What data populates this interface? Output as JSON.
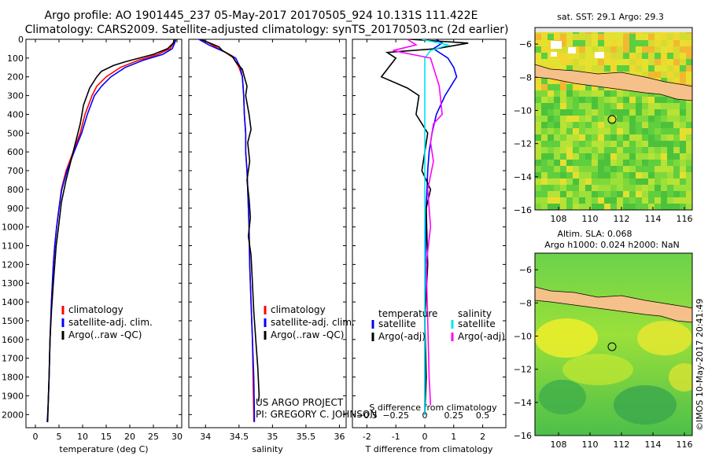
{
  "header": {
    "title_line1": "Argo profile: AO 1901445_237 05-May-2017 20170505_924 10.131S 111.422E",
    "title_line2": "Climatology: CARS2009. Satellite-adjusted climatology: synTS_20170503.nc (2d earlier)"
  },
  "credit": {
    "line1": "US ARGO PROJECT",
    "line2": "PI: GREGORY C. JOHNSON"
  },
  "imos": "©IMOS 10-May-2017 20:41:49",
  "colors": {
    "climatology": "#ff0000",
    "satellite": "#0000ff",
    "argo": "#000000",
    "satellite_s": "#00e5ee",
    "argo_s": "#ff00ff"
  },
  "legend_ts": [
    "climatology",
    "satellite-adj. clim.",
    "Argo(..raw -QC)"
  ],
  "legend_diff": {
    "temperature_title": "temperature",
    "salinity_title": "salinity",
    "t_sat": "satellite",
    "t_argo": "Argo(-adj)",
    "s_sat": "satellite",
    "s_argo": "Argo(-adj)"
  },
  "map_sst": {
    "title": "sat. SST: 29.1  Argo: 29.3"
  },
  "map_sla": {
    "title1": "Altim. SLA: 0.068",
    "title2": "Argo h1000: 0.024 h2000: NaN"
  },
  "chart_data": [
    {
      "type": "line",
      "panel": "temperature",
      "xlabel": "temperature (deg C)",
      "ylabel": "",
      "xlim": [
        -2,
        31
      ],
      "ylim": [
        2070,
        0
      ],
      "xticks": [
        0,
        5,
        10,
        15,
        20,
        25,
        30
      ],
      "yticks": [
        0,
        100,
        200,
        300,
        400,
        500,
        600,
        700,
        800,
        900,
        1000,
        1100,
        1200,
        1300,
        1400,
        1500,
        1600,
        1700,
        1800,
        1900,
        2000
      ],
      "series": [
        {
          "name": "climatology",
          "color": "#ff0000",
          "x": [
            29.5,
            29.3,
            28.5,
            26,
            22,
            18,
            15,
            13,
            12,
            10.5,
            9.5,
            8,
            6.5,
            5.5,
            5,
            4.5,
            4.1,
            3.8,
            3.4,
            3.1,
            2.9,
            2.7,
            2.6,
            2.5
          ],
          "y": [
            0,
            20,
            50,
            80,
            110,
            150,
            200,
            250,
            300,
            400,
            500,
            600,
            700,
            800,
            900,
            1000,
            1100,
            1200,
            1400,
            1600,
            1800,
            1950,
            2000,
            2040
          ]
        },
        {
          "name": "satellite-adj. clim.",
          "color": "#0000ff",
          "x": [
            29.8,
            29.5,
            29,
            27,
            23,
            19,
            16,
            14,
            12.5,
            11,
            9.8,
            8.2,
            6.7,
            5.6,
            5,
            4.5,
            4.1,
            3.8,
            3.4,
            3.1,
            2.9,
            2.7,
            2.6,
            2.5
          ],
          "y": [
            0,
            20,
            50,
            80,
            110,
            150,
            200,
            250,
            300,
            400,
            500,
            600,
            700,
            800,
            900,
            1000,
            1100,
            1200,
            1400,
            1600,
            1800,
            1950,
            2000,
            2040
          ]
        },
        {
          "name": "Argo(..raw -QC)",
          "color": "#000000",
          "x": [
            29.4,
            29.2,
            28,
            25,
            22,
            19,
            16.5,
            14,
            13,
            11.5,
            10.2,
            9.5,
            8,
            6.5,
            5.5,
            4.9,
            4.4,
            4.1,
            3.8,
            3.4,
            3.1,
            2.9,
            2.7,
            2.6
          ],
          "y": [
            0,
            20,
            50,
            80,
            100,
            120,
            140,
            170,
            200,
            260,
            350,
            450,
            600,
            750,
            870,
            1000,
            1100,
            1200,
            1300,
            1450,
            1600,
            1800,
            1950,
            2040
          ]
        }
      ]
    },
    {
      "type": "line",
      "panel": "salinity",
      "xlabel": "salinity",
      "ylabel": "",
      "xlim": [
        33.75,
        36.1
      ],
      "ylim": [
        2070,
        0
      ],
      "xticks": [
        34,
        34.5,
        35,
        35.5,
        36
      ],
      "series": [
        {
          "name": "climatology",
          "color": "#ff0000",
          "x": [
            33.95,
            34.1,
            34.3,
            34.42,
            34.5,
            34.55,
            34.57,
            34.58,
            34.6,
            34.6,
            34.62,
            34.63,
            34.65,
            34.66,
            34.68,
            34.7,
            34.71,
            34.72,
            34.72
          ],
          "y": [
            0,
            30,
            70,
            100,
            150,
            200,
            300,
            400,
            500,
            600,
            700,
            800,
            1000,
            1200,
            1400,
            1600,
            1800,
            2000,
            2040
          ]
        },
        {
          "name": "satellite-adj. clim.",
          "color": "#0000ff",
          "x": [
            33.9,
            34.05,
            34.3,
            34.45,
            34.52,
            34.55,
            34.57,
            34.58,
            34.6,
            34.6,
            34.62,
            34.63,
            34.65,
            34.66,
            34.68,
            34.7,
            34.72,
            34.73,
            34.73
          ],
          "y": [
            0,
            30,
            70,
            100,
            150,
            200,
            300,
            400,
            500,
            600,
            700,
            800,
            1000,
            1200,
            1400,
            1600,
            1800,
            2000,
            2040
          ]
        },
        {
          "name": "Argo(..raw -QC)",
          "color": "#000000",
          "x": [
            33.93,
            34.2,
            34.25,
            34.4,
            34.45,
            34.55,
            34.58,
            34.62,
            34.6,
            34.65,
            34.68,
            34.63,
            34.66,
            34.62,
            34.65,
            34.67,
            34.64,
            34.68,
            34.7,
            34.72,
            34.75,
            34.78,
            34.8,
            34.79
          ],
          "y": [
            0,
            40,
            60,
            90,
            120,
            160,
            200,
            250,
            300,
            400,
            480,
            550,
            650,
            750,
            850,
            950,
            1050,
            1150,
            1300,
            1450,
            1600,
            1750,
            1900,
            1930
          ]
        }
      ]
    },
    {
      "type": "line",
      "panel": "difference",
      "xlabel": "T difference from climatology",
      "xlabel2": "S difference from climatology",
      "xlim": [
        -2.5,
        2.8
      ],
      "ylim": [
        2070,
        0
      ],
      "xticks": [
        -2,
        -1,
        0,
        1,
        2
      ],
      "xticks_s": [
        -0.5,
        -0.25,
        0,
        0.25,
        0.5
      ],
      "series": [
        {
          "name": "temperature satellite",
          "color": "#0000ff",
          "x": [
            0.4,
            0.6,
            0.3,
            0.8,
            1,
            1.1,
            0.9,
            0.7,
            0.4,
            0.25,
            0.15,
            0.1,
            0.05,
            0.02,
            0,
            0
          ],
          "y": [
            0,
            20,
            50,
            100,
            150,
            200,
            250,
            300,
            400,
            500,
            600,
            700,
            900,
            1200,
            1600,
            2000
          ]
        },
        {
          "name": "temperature Argo(-adj)",
          "color": "#000000",
          "x": [
            -0.5,
            1.5,
            0.4,
            -1.3,
            -1,
            -1.5,
            -0.6,
            -0.2,
            -0.3,
            0.1,
            0,
            -0.1,
            0.2,
            0.05,
            0.1,
            0,
            0.05,
            0
          ],
          "y": [
            0,
            20,
            50,
            70,
            100,
            200,
            260,
            300,
            400,
            500,
            600,
            700,
            800,
            900,
            1200,
            1500,
            1800,
            2000
          ]
        },
        {
          "name": "salinity satellite",
          "color": "#00e5ee",
          "x": [
            -0.1,
            0.8,
            0.2,
            0,
            0,
            0,
            0,
            0,
            0,
            0
          ],
          "y": [
            0,
            30,
            60,
            100,
            200,
            400,
            800,
            1200,
            1600,
            2000
          ]
        },
        {
          "name": "salinity Argo(-adj)",
          "color": "#ff00ff",
          "x": [
            -0.6,
            -0.3,
            -1.1,
            0.2,
            0.5,
            0.6,
            0.3,
            0.2,
            0.3,
            0.1,
            0.2,
            0.05,
            0.1,
            0.15,
            0.2
          ],
          "y": [
            0,
            30,
            60,
            100,
            250,
            400,
            450,
            550,
            650,
            800,
            1000,
            1200,
            1500,
            1800,
            1950
          ]
        }
      ]
    },
    {
      "type": "heatmap",
      "panel": "map_sst",
      "xticks": [
        108,
        110,
        112,
        114,
        116
      ],
      "yticks": [
        -6,
        -8,
        -10,
        -12,
        -14,
        -16
      ],
      "xlim": [
        106.5,
        116.5
      ],
      "ylim": [
        -16,
        -5
      ]
    },
    {
      "type": "heatmap",
      "panel": "map_sla",
      "xticks": [
        108,
        110,
        112,
        114,
        116
      ],
      "yticks": [
        -6,
        -8,
        -10,
        -12,
        -14,
        -16
      ],
      "xlim": [
        106.5,
        116.5
      ],
      "ylim": [
        -16,
        -5
      ]
    }
  ]
}
